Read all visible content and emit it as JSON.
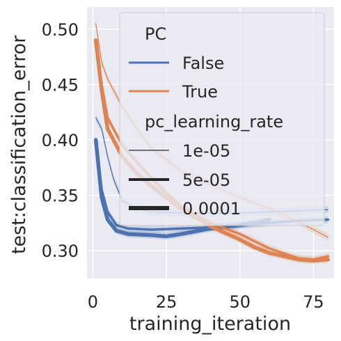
{
  "chart_data": {
    "type": "line",
    "xlabel": "training_iteration",
    "ylabel": "test:classification_error",
    "xlim": [
      -2,
      82
    ],
    "ylim": [
      0.275,
      0.52
    ],
    "x_ticks": [
      0,
      25,
      50,
      75
    ],
    "y_ticks": [
      0.3,
      0.35,
      0.4,
      0.45,
      0.5
    ],
    "y_tick_labels": [
      "0.30",
      "0.35",
      "0.40",
      "0.45",
      "0.50"
    ],
    "grid": true,
    "legend_placement": "top-right",
    "legend": {
      "hue_title": "PC",
      "hue_entries": [
        {
          "label": "False",
          "color": "#4c72b0"
        },
        {
          "label": "True",
          "color": "#dd8452"
        }
      ],
      "size_title": "pc_learning_rate",
      "size_entries": [
        {
          "label": "1e-05"
        },
        {
          "label": "5e-05"
        },
        {
          "label": "0.0001"
        }
      ]
    },
    "series": [
      {
        "pc": "False",
        "pc_learning_rate": "1e-05",
        "color": "#4c72b0",
        "x": [
          1,
          3,
          5,
          7,
          10,
          15,
          20,
          30,
          40,
          50,
          60,
          70,
          80
        ],
        "y": [
          0.42,
          0.41,
          0.385,
          0.365,
          0.345,
          0.338,
          0.335,
          0.334,
          0.334,
          0.334,
          0.335,
          0.336,
          0.337
        ]
      },
      {
        "pc": "False",
        "pc_learning_rate": "5e-05",
        "color": "#4c72b0",
        "x": [
          1,
          3,
          5,
          8,
          12,
          20,
          30,
          40,
          50,
          60,
          70,
          80
        ],
        "y": [
          0.4,
          0.355,
          0.335,
          0.323,
          0.32,
          0.319,
          0.32,
          0.321,
          0.323,
          0.325,
          0.327,
          0.328
        ]
      },
      {
        "pc": "False",
        "pc_learning_rate": "0.0001",
        "color": "#4c72b0",
        "x": [
          1,
          3,
          5,
          8,
          12,
          20,
          25,
          30,
          40,
          50,
          55,
          60
        ],
        "y": [
          0.4,
          0.348,
          0.328,
          0.318,
          0.315,
          0.314,
          0.313,
          0.315,
          0.32,
          0.323,
          0.325,
          0.328
        ]
      },
      {
        "pc": "True",
        "pc_learning_rate": "1e-05",
        "color": "#dd8452",
        "x": [
          1,
          3,
          5,
          10,
          15,
          20,
          25,
          30,
          40,
          50,
          60,
          70,
          80
        ],
        "y": [
          0.505,
          0.47,
          0.455,
          0.43,
          0.41,
          0.392,
          0.382,
          0.372,
          0.36,
          0.348,
          0.338,
          0.326,
          0.312
        ]
      },
      {
        "pc": "True",
        "pc_learning_rate": "5e-05",
        "color": "#dd8452",
        "x": [
          1,
          3,
          5,
          10,
          15,
          20,
          25,
          30,
          40,
          50,
          60,
          70,
          75,
          80
        ],
        "y": [
          0.49,
          0.45,
          0.42,
          0.395,
          0.38,
          0.365,
          0.352,
          0.34,
          0.325,
          0.315,
          0.302,
          0.293,
          0.292,
          0.295
        ]
      },
      {
        "pc": "True",
        "pc_learning_rate": "0.0001",
        "color": "#dd8452",
        "x": [
          1,
          3,
          5,
          10,
          15,
          20,
          25,
          30,
          40,
          50,
          55,
          60,
          70,
          75,
          80
        ],
        "y": [
          0.49,
          0.445,
          0.41,
          0.385,
          0.37,
          0.358,
          0.348,
          0.338,
          0.322,
          0.31,
          0.303,
          0.298,
          0.292,
          0.291,
          0.292
        ]
      }
    ]
  }
}
